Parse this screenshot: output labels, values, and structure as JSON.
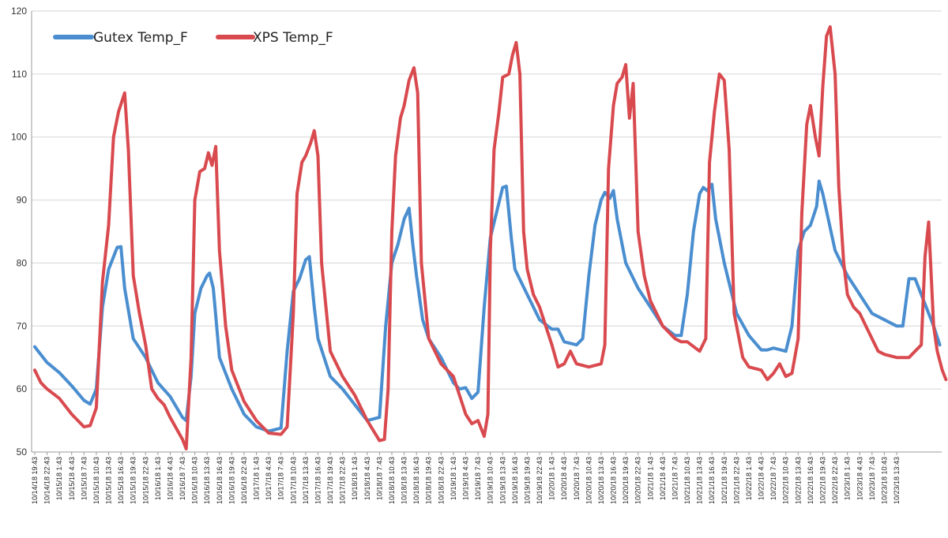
{
  "chart_data": {
    "type": "line",
    "ylim": [
      50,
      120
    ],
    "yticks": [
      50,
      60,
      70,
      80,
      90,
      100,
      110,
      120
    ],
    "grid": "horizontal",
    "legend_position": "top-left",
    "categories": [
      "10/14/18 19:43",
      "10/14/18 22:43",
      "10/15/18 1:43",
      "10/15/18 4:43",
      "10/15/18 7:43",
      "10/15/18 10:43",
      "10/15/18 13:43",
      "10/15/18 16:43",
      "10/15/18 19:43",
      "10/15/18 22:43",
      "10/16/18 1:43",
      "10/16/18 4:43",
      "10/16/18 7:43",
      "10/16/18 10:43",
      "10/16/18 13:43",
      "10/16/18 16:43",
      "10/16/18 19:43",
      "10/16/18 22:43",
      "10/17/18 1:43",
      "10/17/18 4:43",
      "10/17/18 7:43",
      "10/17/18 10:43",
      "10/17/18 13:43",
      "10/17/18 16:43",
      "10/17/18 19:43",
      "10/17/18 22:43",
      "10/18/18 1:43",
      "10/18/18 4:43",
      "10/18/18 7:43",
      "10/18/18 10:43",
      "10/18/18 13:43",
      "10/18/18 16:43",
      "10/18/18 19:43",
      "10/18/18 22:43",
      "10/19/18 1:43",
      "10/19/18 4:43",
      "10/19/18 7:43",
      "10/19/18 10:43",
      "10/19/18 13:43",
      "10/19/18 16:43",
      "10/19/18 19:43",
      "10/19/18 22:43",
      "10/20/18 1:43",
      "10/20/18 4:43",
      "10/20/18 7:43",
      "10/20/18 10:43",
      "10/20/18 13:43",
      "10/20/18 16:43",
      "10/20/18 19:43",
      "10/20/18 22:43",
      "10/21/18 1:43",
      "10/21/18 4:43",
      "10/21/18 7:43",
      "10/21/18 10:43",
      "10/21/18 13:43",
      "10/21/18 16:43",
      "10/21/18 19:43",
      "10/21/18 22:43",
      "10/22/18 1:43",
      "10/22/18 4:43",
      "10/22/18 7:43",
      "10/22/18 10:43",
      "10/22/18 13:43",
      "10/22/18 16:43",
      "10/22/18 19:43",
      "10/22/18 22:43",
      "10/23/18 1:43",
      "10/23/18 4:43",
      "10/23/18 7:43",
      "10/23/18 10:43",
      "10/23/18 13:43"
    ],
    "x_end": "10/23/18 15:43",
    "series": [
      {
        "name": "Gutex Temp_F",
        "color": "#4a8ed0",
        "points": [
          [
            0,
            66.7
          ],
          [
            1,
            64.2
          ],
          [
            2,
            62.6
          ],
          [
            3,
            60.5
          ],
          [
            4,
            58.2
          ],
          [
            4.5,
            57.6
          ],
          [
            5,
            60
          ],
          [
            5.5,
            73
          ],
          [
            6,
            79
          ],
          [
            6.7,
            82.5
          ],
          [
            7,
            82.6
          ],
          [
            7.3,
            76
          ],
          [
            8,
            68
          ],
          [
            9,
            65
          ],
          [
            10,
            61
          ],
          [
            11,
            58.8
          ],
          [
            12,
            55.5
          ],
          [
            12.3,
            55
          ],
          [
            12.7,
            62
          ],
          [
            13,
            72
          ],
          [
            13.5,
            76
          ],
          [
            14,
            78
          ],
          [
            14.2,
            78.4
          ],
          [
            14.5,
            76
          ],
          [
            15,
            65
          ],
          [
            16,
            60
          ],
          [
            17,
            56
          ],
          [
            18,
            54
          ],
          [
            19,
            53.3
          ],
          [
            20,
            53.8
          ],
          [
            20.5,
            66
          ],
          [
            21,
            75.5
          ],
          [
            21.5,
            77.5
          ],
          [
            22,
            80.5
          ],
          [
            22.3,
            81
          ],
          [
            22.7,
            73
          ],
          [
            23,
            68
          ],
          [
            24,
            62
          ],
          [
            25,
            60
          ],
          [
            26,
            57.5
          ],
          [
            27,
            55
          ],
          [
            28,
            55.5
          ],
          [
            28.5,
            70
          ],
          [
            29,
            80
          ],
          [
            29.5,
            83
          ],
          [
            30,
            87
          ],
          [
            30.4,
            88.7
          ],
          [
            30.7,
            83
          ],
          [
            31,
            78
          ],
          [
            31.5,
            71
          ],
          [
            32,
            68
          ],
          [
            33,
            65
          ],
          [
            34,
            61
          ],
          [
            34.5,
            60
          ],
          [
            35,
            60.2
          ],
          [
            35.5,
            58.5
          ],
          [
            36,
            59.5
          ],
          [
            36.5,
            73
          ],
          [
            37,
            84
          ],
          [
            37.5,
            88
          ],
          [
            38,
            92
          ],
          [
            38.3,
            92.2
          ],
          [
            38.7,
            84
          ],
          [
            39,
            79
          ],
          [
            40,
            75
          ],
          [
            41,
            71
          ],
          [
            42,
            69.5
          ],
          [
            42.5,
            69.5
          ],
          [
            43,
            67.5
          ],
          [
            44,
            67
          ],
          [
            44.5,
            68
          ],
          [
            45,
            78
          ],
          [
            45.5,
            86
          ],
          [
            46,
            90
          ],
          [
            46.3,
            91.2
          ],
          [
            46.7,
            90.3
          ],
          [
            47,
            91.5
          ],
          [
            47.3,
            87
          ],
          [
            48,
            80
          ],
          [
            49,
            76
          ],
          [
            50,
            73
          ],
          [
            51,
            70
          ],
          [
            52,
            68.5
          ],
          [
            52.5,
            68.5
          ],
          [
            53,
            75
          ],
          [
            53.5,
            85
          ],
          [
            54,
            91
          ],
          [
            54.3,
            92
          ],
          [
            54.6,
            91.5
          ],
          [
            55,
            92.5
          ],
          [
            55.3,
            87
          ],
          [
            56,
            80
          ],
          [
            57,
            72
          ],
          [
            58,
            68.5
          ],
          [
            59,
            66.2
          ],
          [
            59.5,
            66.2
          ],
          [
            60,
            66.5
          ],
          [
            61,
            66
          ],
          [
            61.5,
            70
          ],
          [
            62,
            82
          ],
          [
            62.5,
            85
          ],
          [
            63,
            86
          ],
          [
            63.5,
            89
          ],
          [
            63.7,
            93
          ],
          [
            64,
            91
          ],
          [
            65,
            82
          ],
          [
            66,
            78
          ],
          [
            67,
            75
          ],
          [
            68,
            72
          ],
          [
            69,
            71
          ],
          [
            70,
            70
          ],
          [
            70.5,
            70
          ],
          [
            71,
            77.5
          ],
          [
            71.5,
            77.5
          ],
          [
            72,
            75
          ],
          [
            73,
            70
          ],
          [
            73.5,
            67
          ]
        ]
      },
      {
        "name": "XPS Temp_F",
        "color": "#d94a4f",
        "points": [
          [
            0,
            63
          ],
          [
            0.5,
            61
          ],
          [
            1,
            60
          ],
          [
            2,
            58.5
          ],
          [
            3,
            56
          ],
          [
            4,
            54
          ],
          [
            4.5,
            54.2
          ],
          [
            5,
            57
          ],
          [
            5.5,
            77
          ],
          [
            6,
            86
          ],
          [
            6.4,
            100
          ],
          [
            6.8,
            104
          ],
          [
            7.3,
            107
          ],
          [
            7.6,
            98
          ],
          [
            8,
            78
          ],
          [
            8.5,
            72
          ],
          [
            9,
            67
          ],
          [
            9.5,
            60
          ],
          [
            10,
            58.5
          ],
          [
            10.5,
            57.5
          ],
          [
            11,
            55.5
          ],
          [
            12,
            52
          ],
          [
            12.3,
            50.5
          ],
          [
            12.7,
            65
          ],
          [
            13,
            90
          ],
          [
            13.4,
            94.5
          ],
          [
            13.8,
            95
          ],
          [
            14.1,
            97.5
          ],
          [
            14.4,
            95.5
          ],
          [
            14.7,
            98.5
          ],
          [
            15,
            82
          ],
          [
            15.5,
            70
          ],
          [
            16,
            63
          ],
          [
            17,
            58
          ],
          [
            18,
            55
          ],
          [
            19,
            53
          ],
          [
            20,
            52.8
          ],
          [
            20.5,
            54
          ],
          [
            21,
            72
          ],
          [
            21.3,
            91
          ],
          [
            21.7,
            96
          ],
          [
            22,
            97
          ],
          [
            22.4,
            99
          ],
          [
            22.7,
            101
          ],
          [
            23,
            97
          ],
          [
            23.3,
            80
          ],
          [
            24,
            66
          ],
          [
            25,
            62
          ],
          [
            26,
            59
          ],
          [
            27,
            55
          ],
          [
            28,
            51.8
          ],
          [
            28.4,
            52
          ],
          [
            28.7,
            60
          ],
          [
            29,
            85
          ],
          [
            29.3,
            97
          ],
          [
            29.7,
            103
          ],
          [
            30,
            105
          ],
          [
            30.4,
            109
          ],
          [
            30.8,
            111
          ],
          [
            31.1,
            107
          ],
          [
            31.4,
            80
          ],
          [
            32,
            68
          ],
          [
            33,
            64
          ],
          [
            34,
            62
          ],
          [
            35,
            56
          ],
          [
            35.5,
            54.5
          ],
          [
            36,
            55
          ],
          [
            36.5,
            52.5
          ],
          [
            36.8,
            56
          ],
          [
            37,
            82
          ],
          [
            37.3,
            98
          ],
          [
            37.7,
            104
          ],
          [
            38,
            109.5
          ],
          [
            38.5,
            110
          ],
          [
            38.8,
            113
          ],
          [
            39.1,
            115
          ],
          [
            39.4,
            110
          ],
          [
            39.7,
            85
          ],
          [
            40,
            79
          ],
          [
            40.5,
            75
          ],
          [
            41,
            73
          ],
          [
            42,
            67
          ],
          [
            42.5,
            63.5
          ],
          [
            43,
            64
          ],
          [
            43.5,
            66
          ],
          [
            44,
            64
          ],
          [
            45,
            63.5
          ],
          [
            46,
            64
          ],
          [
            46.3,
            67
          ],
          [
            46.6,
            95
          ],
          [
            47,
            105
          ],
          [
            47.3,
            108.5
          ],
          [
            47.7,
            109.5
          ],
          [
            48,
            111.5
          ],
          [
            48.3,
            103
          ],
          [
            48.6,
            108.5
          ],
          [
            49,
            85
          ],
          [
            49.5,
            78
          ],
          [
            50,
            74
          ],
          [
            51,
            70
          ],
          [
            52,
            68
          ],
          [
            52.5,
            67.5
          ],
          [
            53,
            67.5
          ],
          [
            54,
            66
          ],
          [
            54.5,
            68
          ],
          [
            54.8,
            96
          ],
          [
            55.2,
            104
          ],
          [
            55.6,
            110
          ],
          [
            56,
            109
          ],
          [
            56.4,
            98
          ],
          [
            56.8,
            72
          ],
          [
            57,
            70
          ],
          [
            57.5,
            65
          ],
          [
            58,
            63.5
          ],
          [
            59,
            63
          ],
          [
            59.5,
            61.5
          ],
          [
            60,
            62.5
          ],
          [
            60.5,
            64
          ],
          [
            61,
            62
          ],
          [
            61.5,
            62.5
          ],
          [
            62,
            68
          ],
          [
            62.3,
            88
          ],
          [
            62.7,
            102
          ],
          [
            63,
            105
          ],
          [
            63.4,
            100
          ],
          [
            63.7,
            97
          ],
          [
            64,
            108
          ],
          [
            64.3,
            116
          ],
          [
            64.6,
            117.5
          ],
          [
            65,
            110
          ],
          [
            65.3,
            92
          ],
          [
            65.7,
            80
          ],
          [
            66,
            75
          ],
          [
            66.5,
            73
          ],
          [
            67,
            72
          ],
          [
            67.5,
            70
          ],
          [
            68,
            68
          ],
          [
            68.5,
            66
          ],
          [
            69,
            65.5
          ],
          [
            70,
            65
          ],
          [
            71,
            65
          ],
          [
            71.5,
            66
          ],
          [
            72,
            67
          ],
          [
            72.3,
            81
          ],
          [
            72.6,
            86.5
          ],
          [
            73,
            70
          ],
          [
            73.3,
            66
          ],
          [
            73.7,
            63
          ],
          [
            74,
            61.5
          ]
        ]
      }
    ]
  }
}
